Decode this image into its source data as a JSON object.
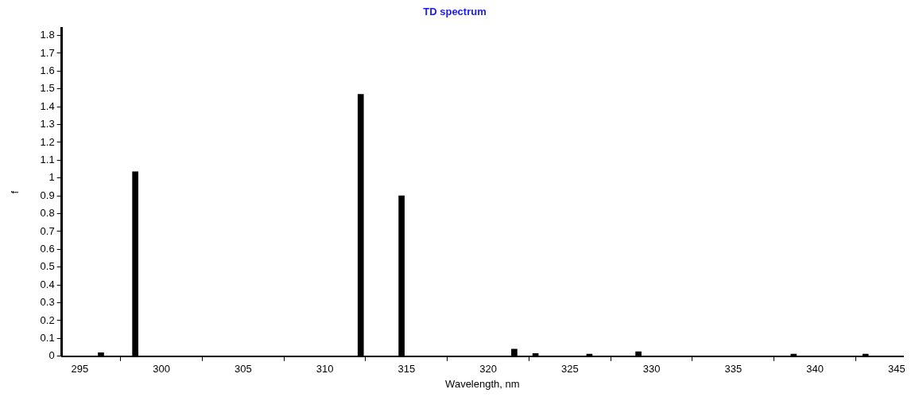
{
  "chart_data": {
    "type": "bar",
    "title": "TD spectrum",
    "xlabel": "Wavelength, nm",
    "ylabel": "f",
    "x": [
      296.3,
      298.4,
      312.2,
      314.7,
      321.6,
      322.9,
      326.2,
      329.2,
      338.7,
      343.1
    ],
    "values": [
      0.02,
      1.035,
      1.47,
      0.9,
      0.04,
      0.015,
      0.012,
      0.025,
      0.012,
      0.012
    ],
    "color": "#000000",
    "xlim": [
      293.9,
      345.4
    ],
    "xticks": [
      295,
      300,
      305,
      310,
      315,
      320,
      325,
      330,
      335,
      340,
      345
    ],
    "ylim": [
      0,
      1.84
    ],
    "yticks": [
      0,
      0.1,
      0.2,
      0.3,
      0.4,
      0.5,
      0.6,
      0.7,
      0.8,
      0.9,
      1,
      1.1,
      1.2,
      1.3,
      1.4,
      1.5,
      1.6,
      1.7,
      1.8
    ],
    "grid": false,
    "legend": false
  }
}
